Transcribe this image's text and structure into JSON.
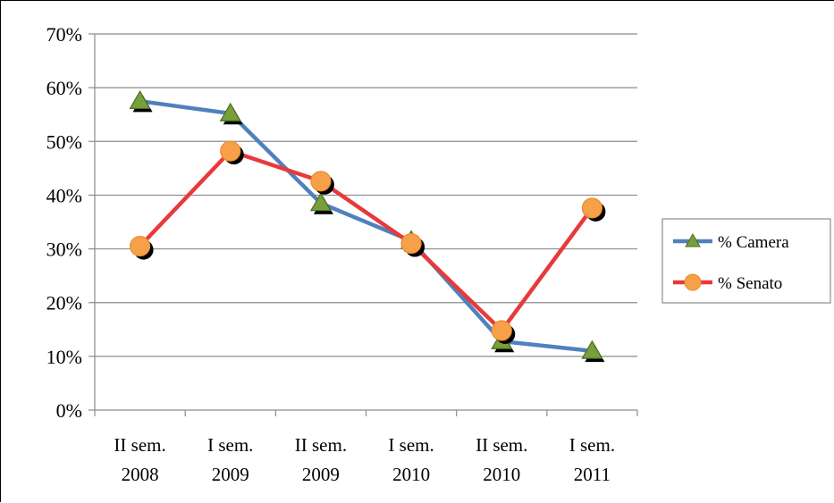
{
  "chart_data": {
    "type": "line",
    "title": "",
    "xlabel": "",
    "ylabel": "",
    "categories": [
      [
        "II sem.",
        "2008"
      ],
      [
        "I sem.",
        "2009"
      ],
      [
        "II sem.",
        "2009"
      ],
      [
        "I sem.",
        "2010"
      ],
      [
        "II sem.",
        "2010"
      ],
      [
        "I sem.",
        "2011"
      ]
    ],
    "y_ticks": [
      "0%",
      "10%",
      "20%",
      "30%",
      "40%",
      "50%",
      "60%",
      "70%"
    ],
    "ylim": [
      0,
      70
    ],
    "grid": true,
    "legend_position": "right",
    "series": [
      {
        "name": "% Camera",
        "values": [
          57.5,
          55.2,
          38.5,
          31.5,
          12.8,
          11.0
        ],
        "line_color": "#4f81bd",
        "marker": "triangle",
        "marker_color": "#77a03a"
      },
      {
        "name": "% Senato",
        "values": [
          30.5,
          48.2,
          42.6,
          31.0,
          14.8,
          37.6
        ],
        "line_color": "#e8393b",
        "marker": "circle",
        "marker_color": "#f7a04a"
      }
    ]
  }
}
